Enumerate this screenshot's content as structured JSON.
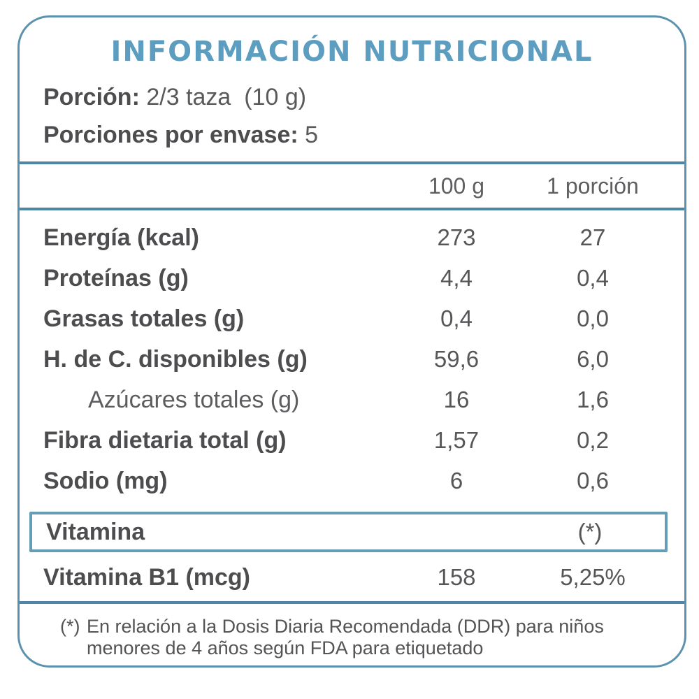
{
  "colors": {
    "border_blue": "#5d92ae",
    "title_blue": "#5d9ec0",
    "rule_blue": "#4d86a6",
    "vitamin_box_blue": "#679cb7",
    "text_dark": "#4d4d4f",
    "text_mid": "#565659"
  },
  "title": "INFORMACIÓN NUTRICIONAL",
  "serving": {
    "portion_label": "Porción:",
    "portion_value": "2/3 taza  (10 g)",
    "servings_label": "Porciones por envase:",
    "servings_value": "5"
  },
  "table": {
    "col_100g": "100 g",
    "col_portion": "1 porción",
    "rows": [
      {
        "name": "Energía (kcal)",
        "per_100g": "273",
        "per_portion": "27"
      },
      {
        "name": "Proteínas (g)",
        "per_100g": "4,4",
        "per_portion": "0,4"
      },
      {
        "name": "Grasas totales (g)",
        "per_100g": "0,4",
        "per_portion": "0,0"
      },
      {
        "name": "H. de C. disponibles (g)",
        "per_100g": "59,6",
        "per_portion": "6,0"
      },
      {
        "name": "Azúcares totales (g)",
        "per_100g": "16",
        "per_portion": "1,6"
      },
      {
        "name": "Fibra dietaria total (g)",
        "per_100g": "1,57",
        "per_portion": "0,2"
      },
      {
        "name": "Sodio (mg)",
        "per_100g": "6",
        "per_portion": "0,6"
      }
    ],
    "vitamin_header": {
      "name": "Vitamina",
      "per_portion": "(*)"
    },
    "vitamin_b1": {
      "name": "Vitamina B1 (mcg)",
      "per_100g": "158",
      "per_portion": "5,25%"
    }
  },
  "footnote": {
    "marker": "(*)",
    "line1": "En relación a la Dosis Diaria Recomendada (DDR) para niños",
    "line2": "menores de 4 años según FDA para etiquetado"
  }
}
